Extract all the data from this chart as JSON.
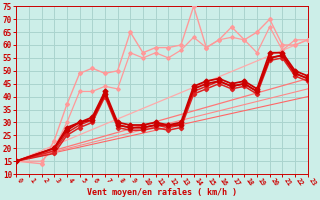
{
  "xlabel": "Vent moyen/en rafales ( km/h )",
  "bg_color": "#cceee8",
  "grid_color": "#aad4ce",
  "x_min": 0,
  "x_max": 23,
  "y_min": 10,
  "y_max": 75,
  "yticks": [
    10,
    15,
    20,
    25,
    30,
    35,
    40,
    45,
    50,
    55,
    60,
    65,
    70,
    75
  ],
  "xticks": [
    0,
    1,
    2,
    3,
    4,
    5,
    6,
    7,
    8,
    9,
    10,
    11,
    12,
    13,
    14,
    15,
    16,
    17,
    18,
    19,
    20,
    21,
    22,
    23
  ],
  "series": [
    {
      "x": [
        0,
        2,
        3,
        4,
        5,
        6,
        7,
        8,
        9,
        10,
        11,
        12,
        13,
        14,
        15,
        16,
        17,
        18,
        19,
        20,
        21,
        22,
        23
      ],
      "y": [
        15,
        14,
        23,
        37,
        49,
        51,
        49,
        50,
        65,
        57,
        59,
        59,
        60,
        75,
        59,
        62,
        67,
        62,
        65,
        70,
        60,
        60,
        62
      ],
      "color": "#ff9999",
      "lw": 1.0,
      "marker": "D",
      "ms": 2.0,
      "zorder": 3
    },
    {
      "x": [
        0,
        2,
        3,
        4,
        5,
        6,
        7,
        8,
        9,
        10,
        11,
        12,
        13,
        14,
        15,
        16,
        17,
        18,
        19,
        20,
        21,
        22,
        23
      ],
      "y": [
        15,
        15,
        20,
        30,
        42,
        42,
        44,
        43,
        57,
        55,
        57,
        55,
        58,
        63,
        59,
        62,
        63,
        62,
        57,
        67,
        58,
        62,
        62
      ],
      "color": "#ff9999",
      "lw": 0.9,
      "marker": "D",
      "ms": 1.8,
      "zorder": 3
    },
    {
      "x": [
        0,
        23
      ],
      "y": [
        15,
        47
      ],
      "color": "#ff7777",
      "lw": 0.9,
      "marker": null,
      "ms": 0,
      "zorder": 1
    },
    {
      "x": [
        0,
        23
      ],
      "y": [
        15,
        62
      ],
      "color": "#ffaaaa",
      "lw": 0.9,
      "marker": null,
      "ms": 0,
      "zorder": 1
    },
    {
      "x": [
        0,
        23
      ],
      "y": [
        15,
        43
      ],
      "color": "#ff8888",
      "lw": 0.8,
      "marker": null,
      "ms": 0,
      "zorder": 1
    },
    {
      "x": [
        0,
        23
      ],
      "y": [
        15,
        40
      ],
      "color": "#ff6666",
      "lw": 0.8,
      "marker": null,
      "ms": 0,
      "zorder": 1
    },
    {
      "x": [
        0,
        3,
        4,
        5,
        6,
        7,
        8,
        9,
        10,
        11,
        12,
        13,
        14,
        15,
        16,
        17,
        18,
        19,
        20,
        21,
        22,
        23
      ],
      "y": [
        15,
        20,
        28,
        30,
        32,
        42,
        30,
        29,
        29,
        30,
        29,
        30,
        44,
        46,
        47,
        45,
        46,
        43,
        57,
        57,
        50,
        48
      ],
      "color": "#cc0000",
      "lw": 1.3,
      "marker": "D",
      "ms": 2.5,
      "zorder": 5
    },
    {
      "x": [
        0,
        3,
        4,
        5,
        6,
        7,
        8,
        9,
        10,
        11,
        12,
        13,
        14,
        15,
        16,
        17,
        18,
        19,
        20,
        21,
        22,
        23
      ],
      "y": [
        15,
        20,
        27,
        30,
        31,
        41,
        29,
        28,
        28,
        29,
        29,
        29,
        43,
        45,
        46,
        44,
        45,
        42,
        55,
        56,
        49,
        47
      ],
      "color": "#cc0000",
      "lw": 1.3,
      "marker": "D",
      "ms": 2.5,
      "zorder": 5
    },
    {
      "x": [
        0,
        3,
        4,
        5,
        6,
        7,
        8,
        9,
        10,
        11,
        12,
        13,
        14,
        15,
        16,
        17,
        18,
        19,
        20,
        21,
        22,
        23
      ],
      "y": [
        15,
        18,
        25,
        28,
        30,
        40,
        28,
        27,
        27,
        28,
        27,
        28,
        41,
        43,
        45,
        43,
        44,
        41,
        54,
        55,
        48,
        46
      ],
      "color": "#dd2222",
      "lw": 1.1,
      "marker": "D",
      "ms": 2.2,
      "zorder": 4
    },
    {
      "x": [
        0,
        3,
        4,
        5,
        6,
        7,
        8,
        9,
        10,
        11,
        12,
        13,
        14,
        15,
        16,
        17,
        18,
        19,
        20,
        21,
        22,
        23
      ],
      "y": [
        15,
        19,
        26,
        29,
        31,
        41,
        29,
        28,
        28,
        29,
        28,
        29,
        42,
        44,
        46,
        44,
        45,
        42,
        55,
        56,
        49,
        47
      ],
      "color": "#dd2222",
      "lw": 1.1,
      "marker": "D",
      "ms": 2.0,
      "zorder": 4
    }
  ],
  "tick_color": "#cc0000",
  "label_color": "#cc0000",
  "axis_color": "#cc0000"
}
